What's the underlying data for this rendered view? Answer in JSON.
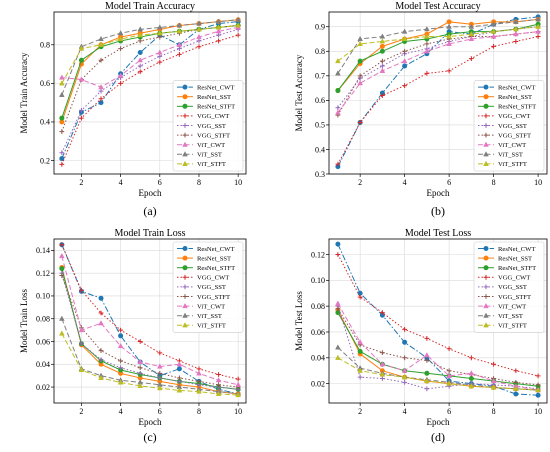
{
  "colors": {
    "ResNet_CWT": "#1f77b4",
    "ResNet_SST": "#ff7f0e",
    "ResNet_STFT": "#2ca02c",
    "VGG_CWT": "#d62728",
    "VGG_SST": "#9467bd",
    "VGG_STFT": "#8c564b",
    "ViT_CWT": "#e377c2",
    "ViT_SST": "#7f7f7f",
    "ViT_STFT": "#bcbd22"
  },
  "chart_data": [
    {
      "type": "line",
      "caption": "(a)",
      "title": "Model Train Accuracy",
      "xlabel": "Epoch",
      "ylabel": "Model Train Accuracy",
      "x": [
        1,
        2,
        3,
        4,
        5,
        6,
        7,
        8,
        9,
        10
      ],
      "xticks": [
        2,
        4,
        6,
        8,
        10
      ],
      "xlim": [
        0.6,
        10.4
      ],
      "ylim": [
        0.13,
        0.97
      ],
      "yticks": [
        0.2,
        0.4,
        0.6,
        0.8
      ],
      "ytick_labels": [
        "0.2",
        "0.4",
        "0.6",
        "0.8"
      ],
      "grid": true,
      "legend": "bottom-right",
      "series": [
        {
          "name": "ResNet_CWT",
          "values": [
            0.21,
            0.45,
            0.5,
            0.65,
            0.76,
            0.85,
            0.8,
            0.88,
            0.91,
            0.92
          ]
        },
        {
          "name": "ResNet_SST",
          "values": [
            0.4,
            0.7,
            0.8,
            0.84,
            0.86,
            0.88,
            0.9,
            0.91,
            0.92,
            0.93
          ]
        },
        {
          "name": "ResNet_STFT",
          "values": [
            0.42,
            0.72,
            0.79,
            0.82,
            0.84,
            0.86,
            0.87,
            0.88,
            0.89,
            0.9
          ]
        },
        {
          "name": "VGG_CWT",
          "values": [
            0.18,
            0.42,
            0.52,
            0.6,
            0.66,
            0.71,
            0.75,
            0.79,
            0.82,
            0.85
          ]
        },
        {
          "name": "VGG_SST",
          "values": [
            0.24,
            0.46,
            0.56,
            0.63,
            0.69,
            0.74,
            0.78,
            0.82,
            0.85,
            0.88
          ]
        },
        {
          "name": "VGG_STFT",
          "values": [
            0.35,
            0.62,
            0.72,
            0.78,
            0.82,
            0.84,
            0.86,
            0.88,
            0.89,
            0.9
          ]
        },
        {
          "name": "ViT_CWT",
          "values": [
            0.63,
            0.62,
            0.58,
            0.64,
            0.72,
            0.76,
            0.8,
            0.84,
            0.87,
            0.89
          ]
        },
        {
          "name": "ViT_SST",
          "values": [
            0.54,
            0.79,
            0.83,
            0.86,
            0.88,
            0.89,
            0.9,
            0.91,
            0.92,
            0.93
          ]
        },
        {
          "name": "ViT_STFT",
          "values": [
            0.6,
            0.78,
            0.8,
            0.83,
            0.85,
            0.86,
            0.87,
            0.88,
            0.89,
            0.9
          ]
        }
      ]
    },
    {
      "type": "line",
      "caption": "(b)",
      "title": "Model Test Accuracy",
      "xlabel": "Epoch",
      "ylabel": "Model Test Accuracy",
      "x": [
        1,
        2,
        3,
        4,
        5,
        6,
        7,
        8,
        9,
        10
      ],
      "xticks": [
        2,
        4,
        6,
        8,
        10
      ],
      "xlim": [
        0.6,
        10.4
      ],
      "ylim": [
        0.3,
        0.96
      ],
      "yticks": [
        0.3,
        0.4,
        0.5,
        0.6,
        0.7,
        0.8,
        0.9
      ],
      "ytick_labels": [
        "0.3",
        "0.4",
        "0.5",
        "0.6",
        "0.7",
        "0.8",
        "0.9"
      ],
      "grid": true,
      "legend": "bottom-right",
      "series": [
        {
          "name": "ResNet_CWT",
          "values": [
            0.33,
            0.51,
            0.63,
            0.74,
            0.79,
            0.88,
            0.87,
            0.91,
            0.93,
            0.94
          ]
        },
        {
          "name": "ResNet_SST",
          "values": [
            0.64,
            0.75,
            0.82,
            0.85,
            0.87,
            0.92,
            0.91,
            0.92,
            0.92,
            0.93
          ]
        },
        {
          "name": "ResNet_STFT",
          "values": [
            0.64,
            0.76,
            0.8,
            0.84,
            0.85,
            0.87,
            0.88,
            0.88,
            0.89,
            0.91
          ]
        },
        {
          "name": "VGG_CWT",
          "values": [
            0.34,
            0.51,
            0.62,
            0.66,
            0.71,
            0.72,
            0.77,
            0.82,
            0.84,
            0.86
          ]
        },
        {
          "name": "VGG_SST",
          "values": [
            0.57,
            0.69,
            0.74,
            0.79,
            0.81,
            0.84,
            0.86,
            0.88,
            0.89,
            0.9
          ]
        },
        {
          "name": "VGG_STFT",
          "values": [
            0.54,
            0.7,
            0.76,
            0.8,
            0.83,
            0.85,
            0.86,
            0.86,
            0.87,
            0.88
          ]
        },
        {
          "name": "ViT_CWT",
          "values": [
            0.55,
            0.67,
            0.72,
            0.76,
            0.8,
            0.83,
            0.85,
            0.86,
            0.87,
            0.88
          ]
        },
        {
          "name": "ViT_SST",
          "values": [
            0.71,
            0.85,
            0.86,
            0.88,
            0.89,
            0.9,
            0.9,
            0.91,
            0.92,
            0.93
          ]
        },
        {
          "name": "ViT_STFT",
          "values": [
            0.76,
            0.83,
            0.84,
            0.85,
            0.86,
            0.86,
            0.87,
            0.88,
            0.89,
            0.9
          ]
        }
      ]
    },
    {
      "type": "line",
      "caption": "(c)",
      "title": "Model Train Loss",
      "xlabel": "Epoch",
      "ylabel": "Model Train Loss",
      "x": [
        1,
        2,
        3,
        4,
        5,
        6,
        7,
        8,
        9,
        10
      ],
      "xticks": [
        2,
        4,
        6,
        8,
        10
      ],
      "xlim": [
        0.6,
        10.4
      ],
      "ylim": [
        0.006,
        0.15
      ],
      "yticks": [
        0.02,
        0.04,
        0.06,
        0.08,
        0.1,
        0.12,
        0.14
      ],
      "ytick_labels": [
        "0.02",
        "0.04",
        "0.06",
        "0.08",
        "0.10",
        "0.12",
        "0.14"
      ],
      "grid": true,
      "legend": "top-right",
      "series": [
        {
          "name": "ResNet_CWT",
          "values": [
            0.145,
            0.104,
            0.098,
            0.065,
            0.042,
            0.03,
            0.036,
            0.025,
            0.018,
            0.014
          ]
        },
        {
          "name": "ResNet_SST",
          "values": [
            0.125,
            0.057,
            0.04,
            0.032,
            0.028,
            0.025,
            0.022,
            0.02,
            0.016,
            0.014
          ]
        },
        {
          "name": "ResNet_STFT",
          "values": [
            0.124,
            0.058,
            0.043,
            0.035,
            0.031,
            0.028,
            0.025,
            0.023,
            0.02,
            0.018
          ]
        },
        {
          "name": "VGG_CWT",
          "values": [
            0.145,
            0.105,
            0.085,
            0.07,
            0.06,
            0.05,
            0.043,
            0.036,
            0.031,
            0.027
          ]
        },
        {
          "name": "VGG_SST",
          "values": [
            0.12,
            0.058,
            0.044,
            0.037,
            0.032,
            0.028,
            0.025,
            0.022,
            0.02,
            0.018
          ]
        },
        {
          "name": "VGG_STFT",
          "values": [
            0.118,
            0.072,
            0.052,
            0.043,
            0.037,
            0.032,
            0.028,
            0.025,
            0.022,
            0.02
          ]
        },
        {
          "name": "ViT_CWT",
          "values": [
            0.135,
            0.07,
            0.076,
            0.056,
            0.042,
            0.038,
            0.04,
            0.032,
            0.026,
            0.022
          ]
        },
        {
          "name": "ViT_SST",
          "values": [
            0.08,
            0.036,
            0.03,
            0.026,
            0.024,
            0.022,
            0.02,
            0.018,
            0.016,
            0.014
          ]
        },
        {
          "name": "ViT_STFT",
          "values": [
            0.067,
            0.035,
            0.028,
            0.024,
            0.021,
            0.019,
            0.017,
            0.016,
            0.014,
            0.013
          ]
        }
      ]
    },
    {
      "type": "line",
      "caption": "(d)",
      "title": "Model Test Loss",
      "xlabel": "Epoch",
      "ylabel": "Model Test Loss",
      "x": [
        1,
        2,
        3,
        4,
        5,
        6,
        7,
        8,
        9,
        10
      ],
      "xticks": [
        2,
        4,
        6,
        8,
        10
      ],
      "xlim": [
        0.6,
        10.4
      ],
      "ylim": [
        0.005,
        0.132
      ],
      "yticks": [
        0.02,
        0.04,
        0.06,
        0.08,
        0.1,
        0.12
      ],
      "ytick_labels": [
        "0.02",
        "0.04",
        "0.06",
        "0.08",
        "0.10",
        "0.12"
      ],
      "grid": true,
      "legend": "top-right",
      "series": [
        {
          "name": "ResNet_CWT",
          "values": [
            0.128,
            0.09,
            0.073,
            0.052,
            0.04,
            0.022,
            0.02,
            0.018,
            0.012,
            0.011
          ]
        },
        {
          "name": "ResNet_SST",
          "values": [
            0.077,
            0.043,
            0.03,
            0.025,
            0.022,
            0.02,
            0.018,
            0.017,
            0.016,
            0.015
          ]
        },
        {
          "name": "ResNet_STFT",
          "values": [
            0.075,
            0.045,
            0.035,
            0.03,
            0.028,
            0.026,
            0.024,
            0.022,
            0.02,
            0.018
          ]
        },
        {
          "name": "VGG_CWT",
          "values": [
            0.12,
            0.087,
            0.075,
            0.062,
            0.055,
            0.047,
            0.04,
            0.035,
            0.03,
            0.026
          ]
        },
        {
          "name": "VGG_SST",
          "values": [
            0.08,
            0.025,
            0.024,
            0.021,
            0.016,
            0.018,
            0.02,
            0.019,
            0.018,
            0.016
          ]
        },
        {
          "name": "VGG_STFT",
          "values": [
            0.078,
            0.05,
            0.044,
            0.04,
            0.038,
            0.03,
            0.027,
            0.024,
            0.021,
            0.019
          ]
        },
        {
          "name": "ViT_CWT",
          "values": [
            0.082,
            0.052,
            0.035,
            0.03,
            0.042,
            0.026,
            0.028,
            0.022,
            0.018,
            0.015
          ]
        },
        {
          "name": "ViT_SST",
          "values": [
            0.048,
            0.032,
            0.028,
            0.025,
            0.023,
            0.021,
            0.019,
            0.017,
            0.016,
            0.015
          ]
        },
        {
          "name": "ViT_STFT",
          "values": [
            0.04,
            0.03,
            0.027,
            0.025,
            0.022,
            0.02,
            0.018,
            0.017,
            0.016,
            0.015
          ]
        }
      ]
    }
  ]
}
